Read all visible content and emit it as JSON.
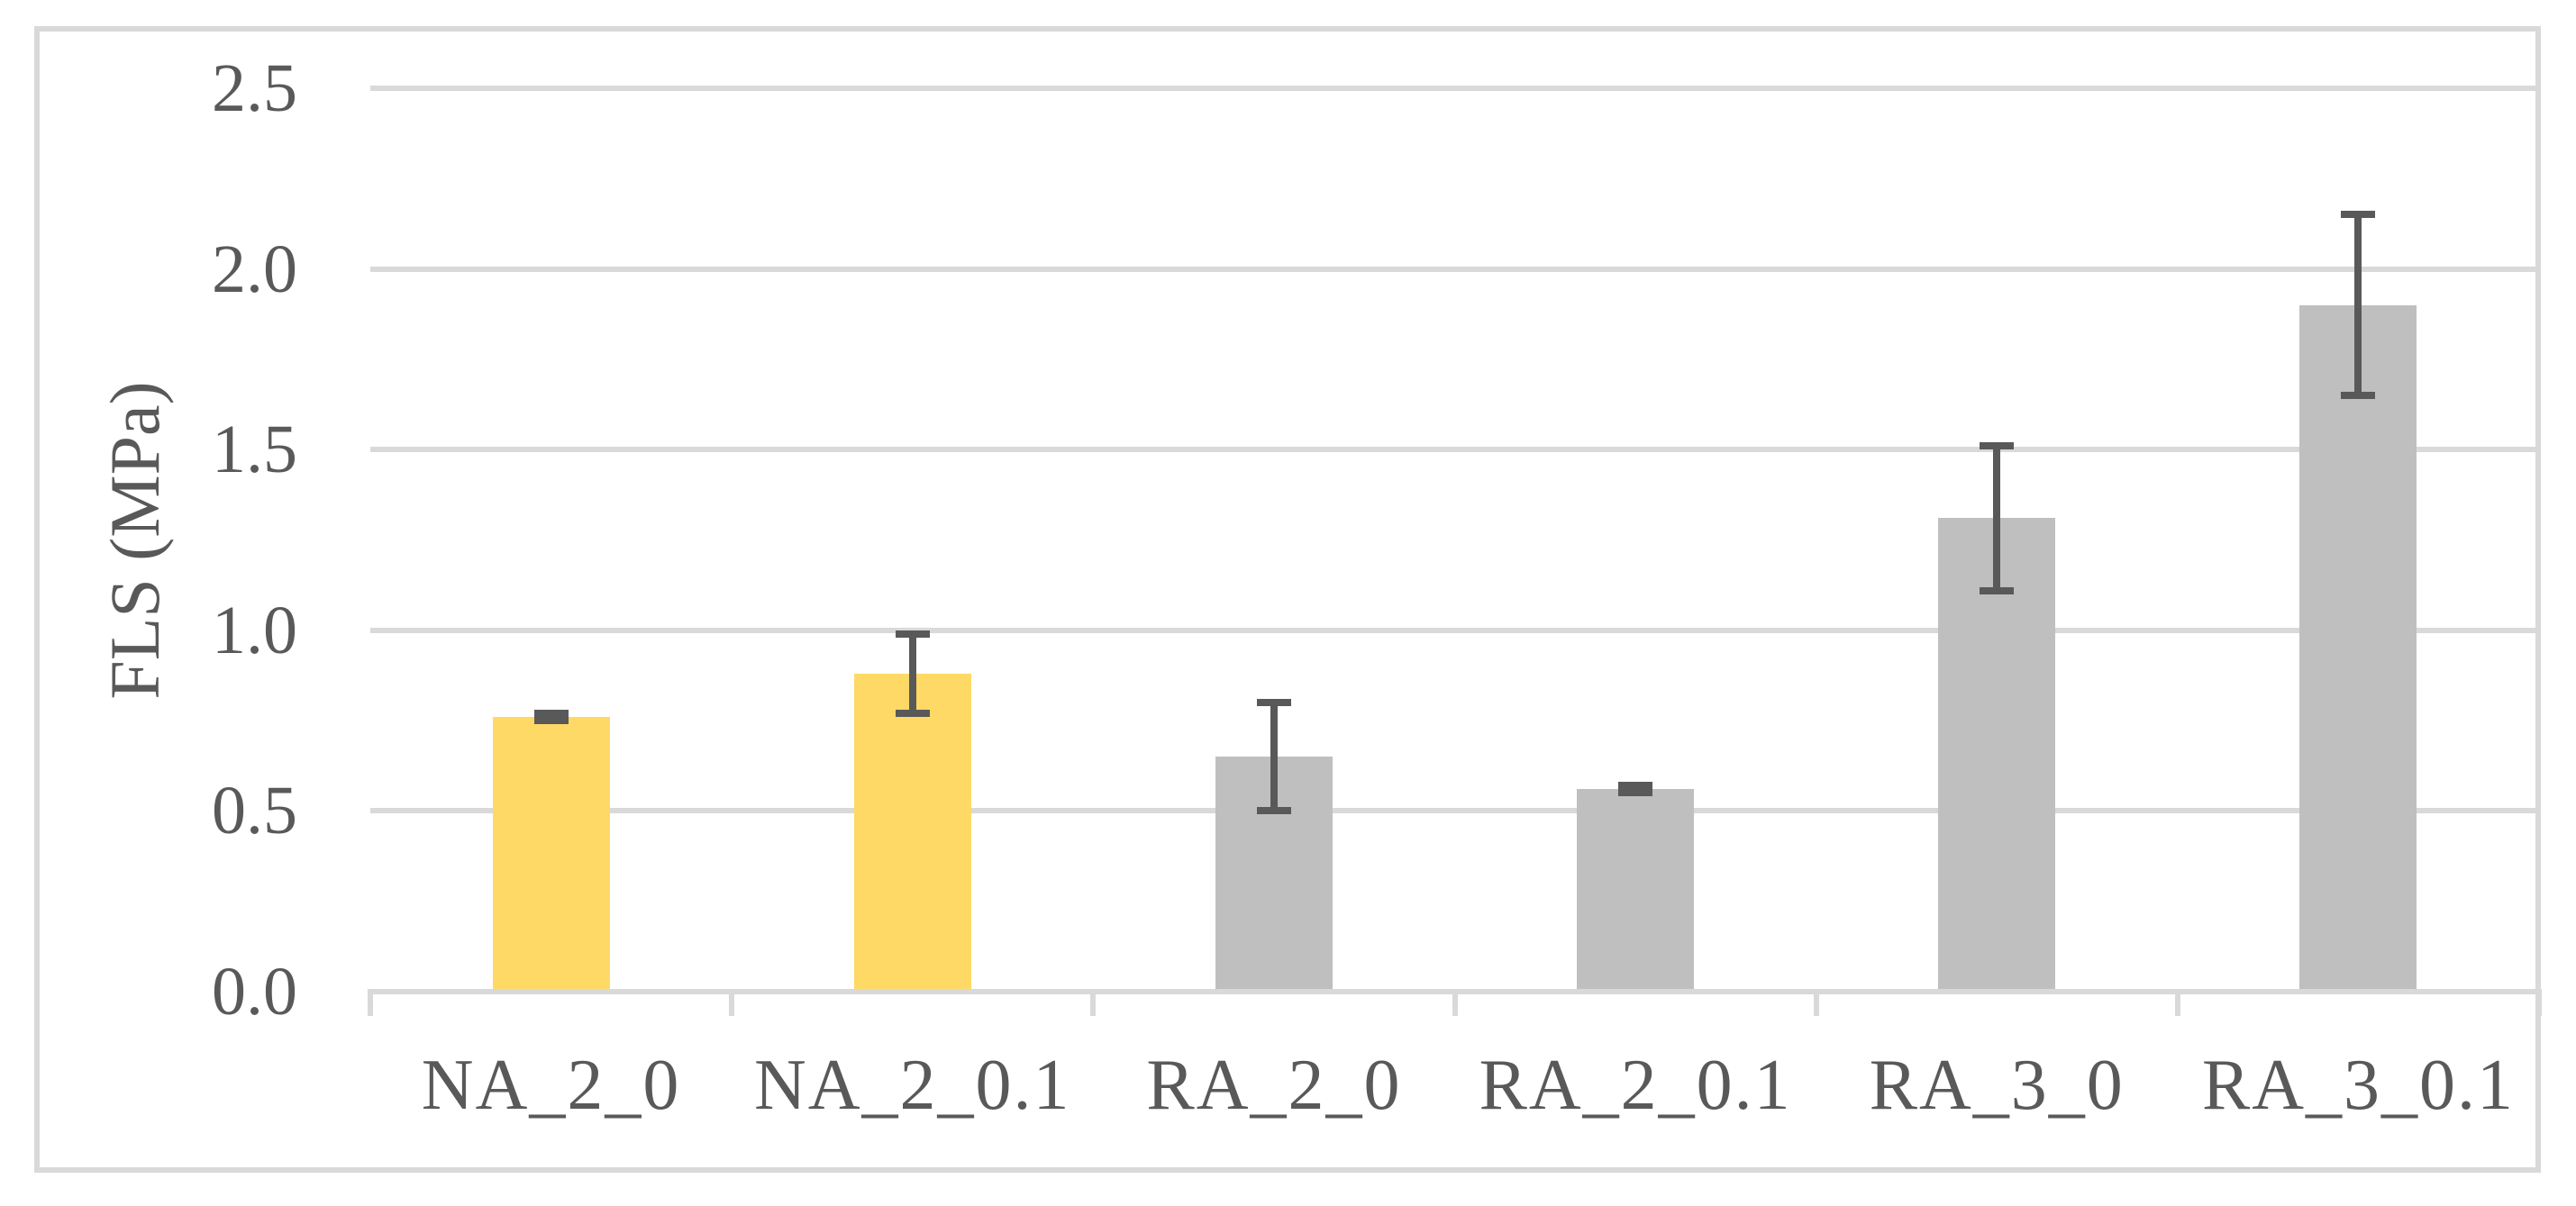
{
  "figure": {
    "y_axis_title": "FLS (MPa)"
  },
  "chart_data": {
    "type": "bar",
    "title": "",
    "xlabel": "",
    "ylabel": "FLS (MPa)",
    "categories": [
      "NA_2_0",
      "NA_2_0.1",
      "RA_2_0",
      "RA_2_0.1",
      "RA_3_0",
      "RA_3_0.1"
    ],
    "values": [
      0.76,
      0.88,
      0.65,
      0.56,
      1.31,
      1.9
    ],
    "errors": [
      0.01,
      0.11,
      0.15,
      0.01,
      0.2,
      0.25
    ],
    "bar_colors": [
      "#FFD965",
      "#FFD965",
      "#BFBFBF",
      "#BFBFBF",
      "#BFBFBF",
      "#BFBFBF"
    ],
    "error_bar_color": "#595959",
    "gridline_color": "#D9D9D9",
    "border_color": "#D9D9D9",
    "text_color": "#595959",
    "ylim": [
      0,
      2.5
    ],
    "ytick_step": 0.5,
    "ytick_labels": [
      "0.0",
      "0.5",
      "1.0",
      "1.5",
      "2.0",
      "2.5"
    ],
    "grid": true,
    "legend": "none"
  }
}
